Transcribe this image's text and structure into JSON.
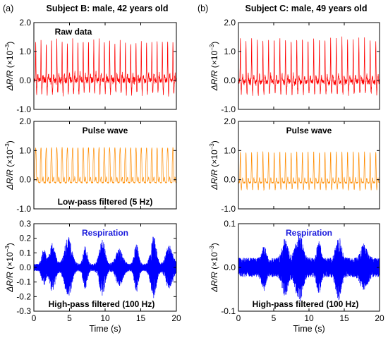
{
  "figure": {
    "columns": [
      {
        "letter": "(a)",
        "title": "Subject B: male, 42 years old"
      },
      {
        "letter": "(b)",
        "title": "Subject C: male, 49 years old"
      }
    ],
    "ylabel_main": "ΔR/R",
    "ylabel_unit": "(×10",
    "ylabel_exp": "−3",
    "ylabel_close": ")",
    "xlabel": "Time (s)"
  },
  "chart_data": [
    {
      "type": "line",
      "column": "a",
      "annotation": "Raw data",
      "annotation_color": "#000000",
      "color": "#ff0000",
      "xlim": [
        0,
        20
      ],
      "ylim": [
        -1.0,
        2.0
      ],
      "xticks": [
        0,
        5,
        10,
        15,
        20
      ],
      "yticks": [
        -1.0,
        0.0,
        1.0,
        2.0
      ],
      "ytick_labels": [
        "-1.0",
        "0.0",
        "1.0",
        "2.0"
      ],
      "xtick_labels": [],
      "signal": {
        "baseline": 0.0,
        "noise": 0.14,
        "beats": 27,
        "peak": 1.35,
        "trough": -0.45,
        "width": 0.05
      },
      "xlabel": "",
      "ylabel": "ΔR/R (×10−3)"
    },
    {
      "type": "line",
      "column": "a",
      "annotation": "Pulse wave",
      "annotation2": "Low-pass filtered (5 Hz)",
      "annotation_color": "#000000",
      "color": "#ff8c00",
      "xlim": [
        0,
        20
      ],
      "ylim": [
        -1.0,
        2.0
      ],
      "xticks": [
        0,
        5,
        10,
        15,
        20
      ],
      "yticks": [
        -1.0,
        0.0,
        1.0,
        2.0
      ],
      "ytick_labels": [
        "-1.0",
        "0.0",
        "1.0",
        "2.0"
      ],
      "xtick_labels": [],
      "signal": {
        "baseline": -0.1,
        "noise": 0.02,
        "beats": 27,
        "peak": 1.2,
        "trough": -0.35,
        "width": 0.16
      },
      "xlabel": "",
      "ylabel": "ΔR/R (×10−3)"
    },
    {
      "type": "line",
      "column": "a",
      "annotation": "Respiration",
      "annotation2": "High-pass filtered (100 Hz)",
      "annotation_color": "#1a1adc",
      "color": "#0000ff",
      "xlim": [
        0,
        20
      ],
      "ylim": [
        -0.3,
        0.3
      ],
      "xticks": [
        0,
        5,
        10,
        15,
        20
      ],
      "yticks": [
        -0.3,
        -0.2,
        -0.1,
        0.0,
        0.1,
        0.2,
        0.3
      ],
      "ytick_labels": [
        "-0.3",
        "-0.2",
        "-0.1",
        "0.0",
        "0.1",
        "0.2",
        "0.3"
      ],
      "xtick_labels": [
        "0",
        "5",
        "10",
        "15",
        "20"
      ],
      "signal": {
        "noise": 0.025,
        "bursts": [
          1.4,
          2.6,
          4.8,
          7.2,
          9.6,
          12.0,
          14.4,
          16.8,
          19.0
        ],
        "burst_amp": 0.19
      },
      "xlabel": "Time (s)",
      "ylabel": "ΔR/R (×10−3)"
    },
    {
      "type": "line",
      "column": "b",
      "annotation": "",
      "annotation_color": "#000000",
      "color": "#ff0000",
      "xlim": [
        0,
        20
      ],
      "ylim": [
        -1.0,
        2.0
      ],
      "xticks": [
        0,
        5,
        10,
        15,
        20
      ],
      "yticks": [
        -1.0,
        0.0,
        1.0,
        2.0
      ],
      "ytick_labels": [
        "-1.0",
        "0.0",
        "1.0",
        "2.0"
      ],
      "xtick_labels": [],
      "signal": {
        "baseline": -0.05,
        "noise": 0.13,
        "beats": 25,
        "peak": 1.45,
        "trough": -0.4,
        "width": 0.05
      },
      "xlabel": "",
      "ylabel": "ΔR/R (×10−3)"
    },
    {
      "type": "line",
      "column": "b",
      "annotation": "Pulse wave",
      "annotation_color": "#000000",
      "color": "#ff8c00",
      "xlim": [
        0,
        20
      ],
      "ylim": [
        -1.0,
        2.0
      ],
      "xticks": [
        0,
        5,
        10,
        15,
        20
      ],
      "yticks": [
        -1.0,
        0.0,
        1.0,
        2.0
      ],
      "ytick_labels": [
        "-1.0",
        "0.0",
        "1.0",
        "2.0"
      ],
      "xtick_labels": [],
      "signal": {
        "baseline": -0.1,
        "noise": 0.04,
        "beats": 25,
        "peak": 1.05,
        "trough": -0.25,
        "width": 0.07
      },
      "xlabel": "",
      "ylabel": "ΔR/R (×10−3)"
    },
    {
      "type": "line",
      "column": "b",
      "annotation": "Respiration",
      "annotation2": "High-pass filtered (100 Hz)",
      "annotation_color": "#1a1adc",
      "color": "#0000ff",
      "xlim": [
        0,
        20
      ],
      "ylim": [
        -0.1,
        0.1
      ],
      "xticks": [
        0,
        5,
        10,
        15,
        20
      ],
      "yticks": [
        -0.1,
        0.0,
        0.1
      ],
      "ytick_labels": [
        "-0.1",
        "0.0",
        "0.1"
      ],
      "xtick_labels": [
        "0",
        "5",
        "10",
        "15",
        "20"
      ],
      "signal": {
        "noise": 0.022,
        "bursts": [
          3.6,
          6.6,
          8.6,
          11.4,
          14.2,
          17.8
        ],
        "burst_amp": 0.06
      },
      "xlabel": "Time (s)",
      "ylabel": "ΔR/R (×10−3)"
    }
  ]
}
